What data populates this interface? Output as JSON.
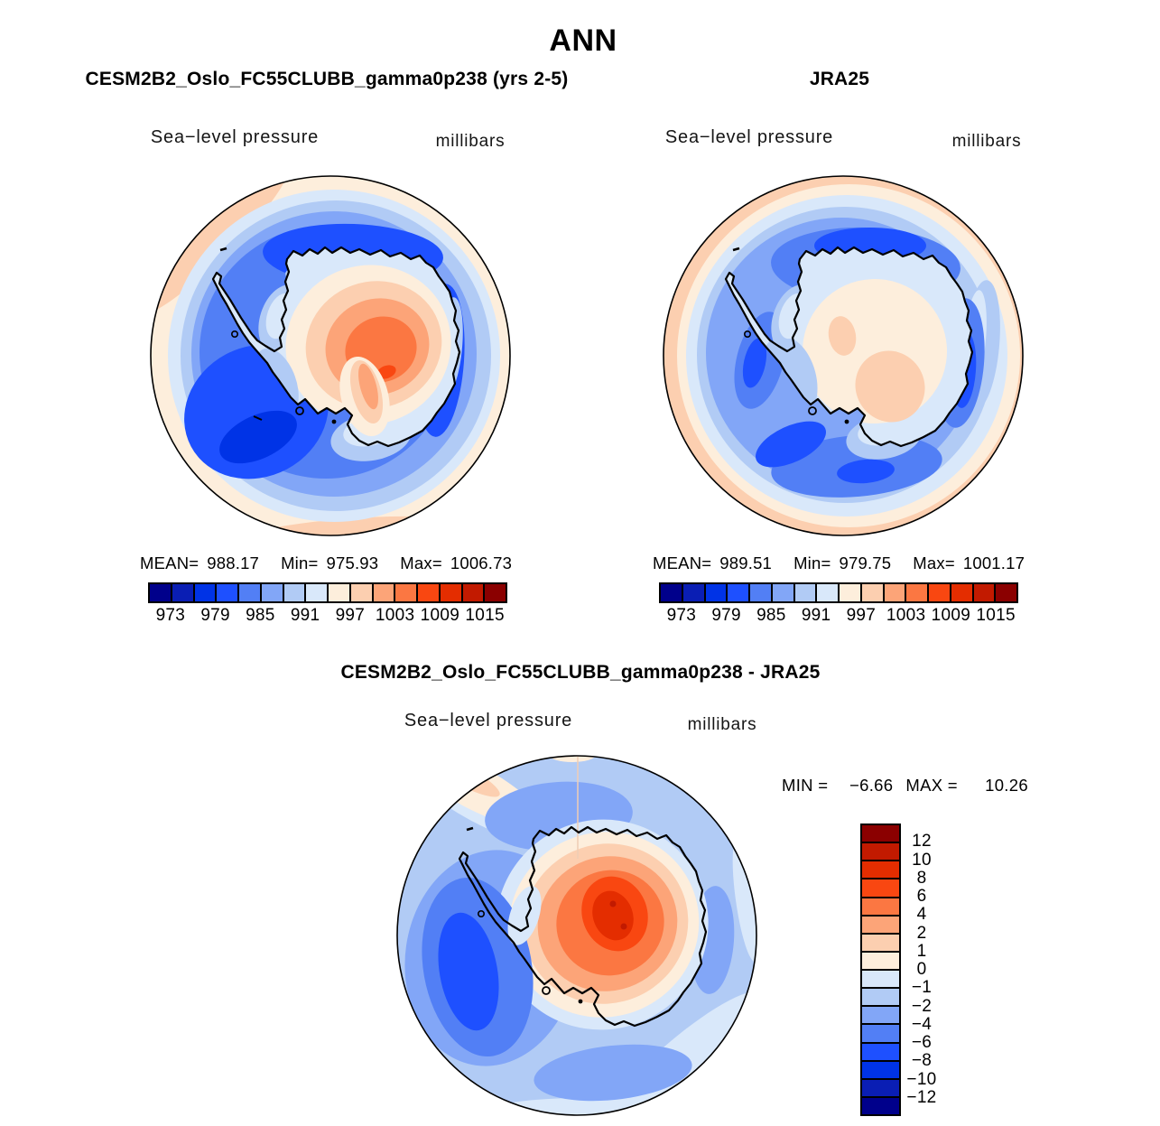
{
  "figure": {
    "title": "ANN",
    "background": "#FFFFFF"
  },
  "palette_low_to_high": [
    "#00008B",
    "#0A1EB4",
    "#0033E6",
    "#1E50FF",
    "#527FF5",
    "#82A6F7",
    "#B1CBF5",
    "#D9E8FA",
    "#FDEEDC",
    "#FCCFB0",
    "#FCA478",
    "#FB7742",
    "#F94711",
    "#E42D00",
    "#C21A00",
    "#8B0000"
  ],
  "panels": [
    {
      "id": "model",
      "title": "CESM2B2_Oslo_FC55CLUBB_gamma0p238 (yrs 2-5)",
      "variable": "Sea−level pressure",
      "units": "millibars",
      "stats": {
        "mean_label": "MEAN=",
        "mean": "988.17",
        "min_label": "Min=",
        "min": "975.93",
        "max_label": "Max=",
        "max": "1006.73"
      },
      "colorbar": {
        "orientation": "horizontal",
        "colors": [
          "#00008B",
          "#0A1EB4",
          "#0033E6",
          "#1E50FF",
          "#527FF5",
          "#82A6F7",
          "#B1CBF5",
          "#D9E8FA",
          "#FDEEDC",
          "#FCCFB0",
          "#FCA478",
          "#FB7742",
          "#F94711",
          "#E42D00",
          "#C21A00",
          "#8B0000"
        ],
        "ticks": [
          {
            "label": "973",
            "pos": 0.0625
          },
          {
            "label": "979",
            "pos": 0.1875
          },
          {
            "label": "985",
            "pos": 0.3125
          },
          {
            "label": "991",
            "pos": 0.4375
          },
          {
            "label": "997",
            "pos": 0.5625
          },
          {
            "label": "1003",
            "pos": 0.6875
          },
          {
            "label": "1009",
            "pos": 0.8125
          },
          {
            "label": "1015",
            "pos": 0.9375
          }
        ]
      }
    },
    {
      "id": "reference",
      "title": "JRA25",
      "variable": "Sea−level pressure",
      "units": "millibars",
      "stats": {
        "mean_label": "MEAN=",
        "mean": "989.51",
        "min_label": "Min=",
        "min": "979.75",
        "max_label": "Max=",
        "max": "1001.17"
      },
      "colorbar": {
        "orientation": "horizontal",
        "colors": [
          "#00008B",
          "#0A1EB4",
          "#0033E6",
          "#1E50FF",
          "#527FF5",
          "#82A6F7",
          "#B1CBF5",
          "#D9E8FA",
          "#FDEEDC",
          "#FCCFB0",
          "#FCA478",
          "#FB7742",
          "#F94711",
          "#E42D00",
          "#C21A00",
          "#8B0000"
        ],
        "ticks": [
          {
            "label": "973",
            "pos": 0.0625
          },
          {
            "label": "979",
            "pos": 0.1875
          },
          {
            "label": "985",
            "pos": 0.3125
          },
          {
            "label": "991",
            "pos": 0.4375
          },
          {
            "label": "997",
            "pos": 0.5625
          },
          {
            "label": "1003",
            "pos": 0.6875
          },
          {
            "label": "1009",
            "pos": 0.8125
          },
          {
            "label": "1015",
            "pos": 0.9375
          }
        ]
      }
    },
    {
      "id": "difference",
      "title": "CESM2B2_Oslo_FC55CLUBB_gamma0p238 - JRA25",
      "variable": "Sea−level pressure",
      "units": "millibars",
      "stats": {
        "min_label": "MIN =",
        "min": "−6.66",
        "max_label": "MAX =",
        "max": "10.26"
      },
      "colorbar": {
        "orientation": "vertical",
        "colors": [
          "#8B0000",
          "#C21A00",
          "#E42D00",
          "#F94711",
          "#FB7742",
          "#FCA478",
          "#FCCFB0",
          "#FDEEDC",
          "#D9E8FA",
          "#B1CBF5",
          "#82A6F7",
          "#527FF5",
          "#1E50FF",
          "#0033E6",
          "#0A1EB4",
          "#00008B"
        ],
        "ticks": [
          {
            "label": "12",
            "pos": 0.0625
          },
          {
            "label": "10",
            "pos": 0.125
          },
          {
            "label": "8",
            "pos": 0.1875
          },
          {
            "label": "6",
            "pos": 0.25
          },
          {
            "label": "4",
            "pos": 0.3125
          },
          {
            "label": "2",
            "pos": 0.375
          },
          {
            "label": "1",
            "pos": 0.4375
          },
          {
            "label": "0",
            "pos": 0.5
          },
          {
            "label": "−1",
            "pos": 0.5625
          },
          {
            "label": "−2",
            "pos": 0.625
          },
          {
            "label": "−4",
            "pos": 0.6875
          },
          {
            "label": "−6",
            "pos": 0.75
          },
          {
            "label": "−8",
            "pos": 0.8125
          },
          {
            "label": "−10",
            "pos": 0.875
          },
          {
            "label": "−12",
            "pos": 0.9375
          }
        ]
      }
    }
  ],
  "chart_data": [
    {
      "type": "heatmap",
      "subtype": "filled-contour-map",
      "panel": "model",
      "season": "ANN",
      "title": "CESM2B2_Oslo_FC55CLUBB_gamma0p238 (yrs 2-5)",
      "variable": "Sea-level pressure",
      "units": "millibars",
      "projection": "south polar stereographic (Antarctica centered)",
      "stats": {
        "mean": 988.17,
        "min": 975.93,
        "max": 1006.73
      },
      "contour_levels": [
        973,
        976,
        979,
        982,
        985,
        988,
        991,
        994,
        997,
        1000,
        1003,
        1006,
        1009,
        1012,
        1015
      ],
      "labeled_ticks": [
        973,
        979,
        985,
        991,
        997,
        1003,
        1009,
        1015
      ],
      "palette_low_to_high": [
        "#00008B",
        "#0A1EB4",
        "#0033E6",
        "#1E50FF",
        "#527FF5",
        "#82A6F7",
        "#B1CBF5",
        "#D9E8FA",
        "#FDEEDC",
        "#FCCFB0",
        "#FCA478",
        "#FB7742",
        "#F94711",
        "#E42D00",
        "#C21A00",
        "#8B0000"
      ],
      "visual_pattern": "High SLP (orange, up to ~1006) over East Antarctic interior; deep circumpolar low belt (dark blue, ~976-982) strongest over Amundsen/Ross sector; higher pressure (cream/peach ring) toward map rim mid-latitudes."
    },
    {
      "type": "heatmap",
      "subtype": "filled-contour-map",
      "panel": "reference",
      "season": "ANN",
      "title": "JRA25",
      "variable": "Sea-level pressure",
      "units": "millibars",
      "projection": "south polar stereographic (Antarctica centered)",
      "stats": {
        "mean": 989.51,
        "min": 979.75,
        "max": 1001.17
      },
      "contour_levels": [
        973,
        976,
        979,
        982,
        985,
        988,
        991,
        994,
        997,
        1000,
        1003,
        1006,
        1009,
        1012,
        1015
      ],
      "labeled_ticks": [
        973,
        979,
        985,
        991,
        997,
        1003,
        1009,
        1015
      ],
      "palette_low_to_high": [
        "#00008B",
        "#0A1EB4",
        "#0033E6",
        "#1E50FF",
        "#527FF5",
        "#82A6F7",
        "#B1CBF5",
        "#D9E8FA",
        "#FDEEDC",
        "#FCCFB0",
        "#FCA478",
        "#FB7742",
        "#F94711",
        "#E42D00",
        "#C21A00",
        "#8B0000"
      ],
      "visual_pattern": "Weaker interior high (pale peach, max ~1001) over East Antarctica; circumpolar trough ring (blue) with darker pockets; peach/cream high-pressure ring at rim, widest on left."
    },
    {
      "type": "heatmap",
      "subtype": "filled-contour-map-difference",
      "panel": "difference",
      "season": "ANN",
      "title": "CESM2B2_Oslo_FC55CLUBB_gamma0p238 - JRA25",
      "variable": "Sea-level pressure",
      "units": "millibars",
      "projection": "south polar stereographic (Antarctica centered)",
      "stats": {
        "min": -6.66,
        "max": 10.26
      },
      "contour_levels": [
        -12,
        -10,
        -8,
        -6,
        -4,
        -2,
        -1,
        0,
        1,
        2,
        4,
        6,
        8,
        10,
        12
      ],
      "palette_low_to_high": [
        "#00008B",
        "#0A1EB4",
        "#0033E6",
        "#1E50FF",
        "#527FF5",
        "#82A6F7",
        "#B1CBF5",
        "#D9E8FA",
        "#FDEEDC",
        "#FCCFB0",
        "#FCA478",
        "#FB7742",
        "#F94711",
        "#E42D00",
        "#C21A00",
        "#8B0000"
      ],
      "visual_pattern": "Positive bias (orange/red, up to +10.26 mb) over East Antarctic interior; negative bias (blue, to -6.66 mb) over Amundsen/Bellingshausen Seas west of the Peninsula; weakly negative elsewhere."
    }
  ]
}
